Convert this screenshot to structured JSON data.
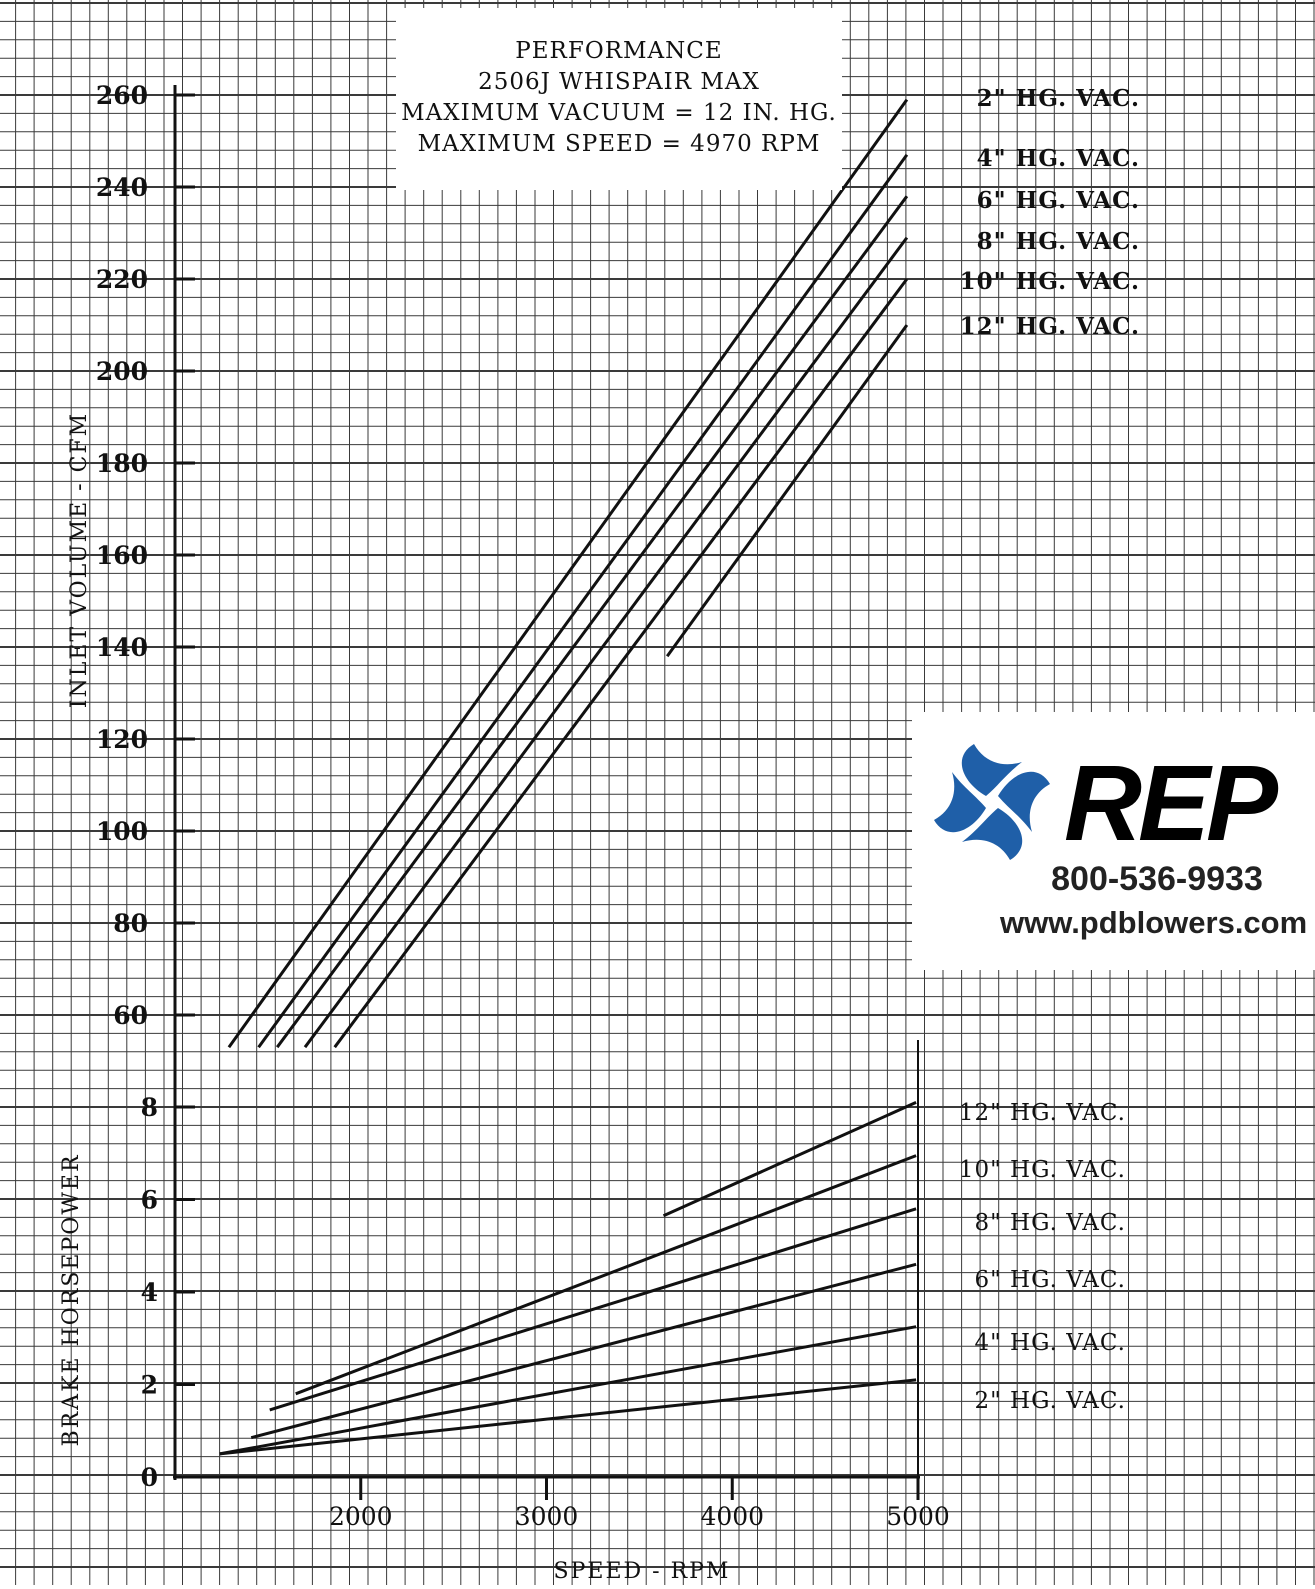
{
  "title": {
    "lines": [
      "PERFORMANCE",
      "2506J WHISPAIR MAX",
      "MAXIMUM VACUUM = 12 IN. HG.",
      "MAXIMUM SPEED = 4970 RPM"
    ]
  },
  "brand": {
    "wordmark": "REP",
    "phone": "800-536-9933",
    "url": "www.pdblowers.com"
  },
  "colors": {
    "ink": "#111111",
    "grid": "#3a3a3a",
    "logo_blue": "#1f5fa8"
  },
  "chart_data": [
    {
      "type": "line",
      "title": "PERFORMANCE",
      "xlabel": "SPEED - RPM",
      "ylabel": "INLET VOLUME - CFM",
      "xlim": [
        1000,
        5000
      ],
      "ylim": [
        50,
        260
      ],
      "y_ticks": [
        60,
        80,
        100,
        120,
        140,
        160,
        180,
        200,
        220,
        240,
        260
      ],
      "grid": true,
      "series": [
        {
          "name": "2\" HG. VAC.",
          "x": [
            1290,
            4940
          ],
          "y": [
            53,
            259
          ]
        },
        {
          "name": "4\" HG. VAC.",
          "x": [
            1450,
            4940
          ],
          "y": [
            53,
            247
          ]
        },
        {
          "name": "6\" HG. VAC.",
          "x": [
            1550,
            4940
          ],
          "y": [
            53,
            238
          ]
        },
        {
          "name": "8\" HG. VAC.",
          "x": [
            1700,
            4940
          ],
          "y": [
            53,
            229
          ]
        },
        {
          "name": "10\" HG. VAC.",
          "x": [
            1860,
            4940
          ],
          "y": [
            53,
            220
          ]
        },
        {
          "name": "12\" HG. VAC.",
          "x": [
            3650,
            4940
          ],
          "y": [
            138,
            210
          ]
        }
      ]
    },
    {
      "type": "line",
      "xlabel": "SPEED - RPM",
      "ylabel": "BRAKE HORSEPOWER",
      "xlim": [
        1000,
        5000
      ],
      "ylim": [
        0,
        8
      ],
      "x_ticks": [
        2000,
        3000,
        4000,
        5000
      ],
      "y_ticks": [
        0,
        2,
        4,
        6,
        8
      ],
      "grid": true,
      "series": [
        {
          "name": "12\" HG. VAC.",
          "x": [
            3630,
            4990
          ],
          "y": [
            5.65,
            8.1
          ]
        },
        {
          "name": "10\" HG. VAC.",
          "x": [
            1650,
            4990
          ],
          "y": [
            1.8,
            6.95
          ]
        },
        {
          "name": "8\" HG. VAC.",
          "x": [
            1510,
            4990
          ],
          "y": [
            1.45,
            5.8
          ]
        },
        {
          "name": "6\" HG. VAC.",
          "x": [
            1410,
            4990
          ],
          "y": [
            0.85,
            4.6
          ]
        },
        {
          "name": "4\" HG. VAC.",
          "x": [
            1240,
            4990
          ],
          "y": [
            0.5,
            3.25
          ]
        },
        {
          "name": "2\" HG. VAC.",
          "x": [
            1240,
            4990
          ],
          "y": [
            0.5,
            2.1
          ]
        }
      ]
    }
  ]
}
